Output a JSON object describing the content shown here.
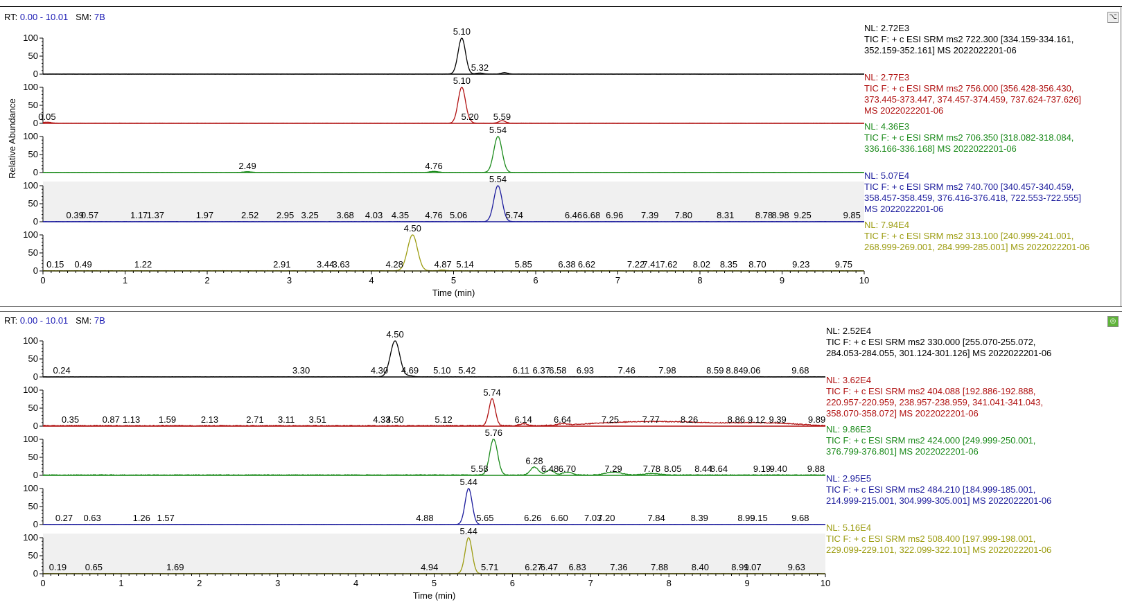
{
  "panels": [
    {
      "rt_label": "RT:",
      "rt_range": "0.00 - 10.01",
      "sm_label": "SM:",
      "sm_value": "7B",
      "ylabel": "Relative Abundance",
      "xlabel": "Time (min)"
    },
    {
      "rt_label": "RT:",
      "rt_range": "0.00 - 10.01",
      "sm_label": "SM:",
      "sm_value": "7B",
      "ylabel": "",
      "xlabel": "Time (min)"
    }
  ],
  "chart_data": [
    {
      "type": "line",
      "xlabel": "Time (min)",
      "ylabel": "Relative Abundance",
      "xlim": [
        0,
        10
      ],
      "x_ticks": [
        0,
        1,
        2,
        3,
        4,
        5,
        6,
        7,
        8,
        9,
        10
      ],
      "ylim": [
        0,
        100
      ],
      "y_ticks": [
        0,
        50,
        100
      ],
      "traces": [
        {
          "color": "#000000",
          "nl": "NL: 2.72E3",
          "description": "TIC F: + c ESI SRM ms2 722.300 [334.159-334.161,\n352.159-352.161]  MS 2022022201-06",
          "shaded": false,
          "baseline_noise": 0.5,
          "peaks": [
            {
              "rt": 5.1,
              "height": 100,
              "width": 0.045
            },
            {
              "rt": 5.32,
              "height": 3,
              "width": 0.04
            },
            {
              "rt": 5.62,
              "height": 4,
              "width": 0.04
            }
          ],
          "labels": [
            {
              "rt": 5.1,
              "text": "5.10"
            },
            {
              "rt": 5.32,
              "text": "5.32"
            }
          ]
        },
        {
          "color": "#b01010",
          "nl": "NL: 2.77E3",
          "description": "TIC F: + c ESI SRM ms2 756.000 [356.428-356.430,\n373.445-373.447, 374.457-374.459, 737.624-737.626]\nMS 2022022201-06",
          "shaded": false,
          "baseline_noise": 0.8,
          "peaks": [
            {
              "rt": 0.05,
              "height": 3,
              "width": 0.05
            },
            {
              "rt": 5.1,
              "height": 100,
              "width": 0.045
            },
            {
              "rt": 5.2,
              "height": 3,
              "width": 0.03
            },
            {
              "rt": 5.59,
              "height": 7,
              "width": 0.04
            }
          ],
          "labels": [
            {
              "rt": 0.05,
              "text": "0.05"
            },
            {
              "rt": 5.1,
              "text": "5.10"
            },
            {
              "rt": 5.2,
              "text": "5.20"
            },
            {
              "rt": 5.59,
              "text": "5.59"
            }
          ]
        },
        {
          "color": "#1a8a1a",
          "nl": "NL: 4.36E3",
          "description": "TIC F: + c ESI SRM ms2 706.350 [318.082-318.084,\n336.166-336.168]  MS 2022022201-06",
          "shaded": false,
          "baseline_noise": 0.6,
          "peaks": [
            {
              "rt": 2.49,
              "height": 2,
              "width": 0.05
            },
            {
              "rt": 4.76,
              "height": 3,
              "width": 0.05
            },
            {
              "rt": 5.54,
              "height": 100,
              "width": 0.05
            }
          ],
          "labels": [
            {
              "rt": 2.49,
              "text": "2.49"
            },
            {
              "rt": 4.76,
              "text": "4.76"
            },
            {
              "rt": 5.54,
              "text": "5.54"
            }
          ]
        },
        {
          "color": "#1a1a9c",
          "nl": "NL: 5.07E4",
          "description": "TIC F: + c ESI SRM ms2 740.700 [340.457-340.459,\n358.457-358.459, 376.416-376.418, 722.553-722.555]\nMS 2022022201-06",
          "shaded": true,
          "baseline_noise": 0.6,
          "peaks": [
            {
              "rt": 5.54,
              "height": 100,
              "width": 0.05
            }
          ],
          "labels": [
            {
              "rt": 0.39,
              "text": "0.39"
            },
            {
              "rt": 0.57,
              "text": "0.57"
            },
            {
              "rt": 1.17,
              "text": "1.17"
            },
            {
              "rt": 1.37,
              "text": "1.37"
            },
            {
              "rt": 1.97,
              "text": "1.97"
            },
            {
              "rt": 2.52,
              "text": "2.52"
            },
            {
              "rt": 2.95,
              "text": "2.95"
            },
            {
              "rt": 3.25,
              "text": "3.25"
            },
            {
              "rt": 3.68,
              "text": "3.68"
            },
            {
              "rt": 4.03,
              "text": "4.03"
            },
            {
              "rt": 4.35,
              "text": "4.35"
            },
            {
              "rt": 4.76,
              "text": "4.76"
            },
            {
              "rt": 5.06,
              "text": "5.06"
            },
            {
              "rt": 5.54,
              "text": "5.54"
            },
            {
              "rt": 5.74,
              "text": "5.74"
            },
            {
              "rt": 6.46,
              "text": "6.46"
            },
            {
              "rt": 6.68,
              "text": "6.68"
            },
            {
              "rt": 6.96,
              "text": "6.96"
            },
            {
              "rt": 7.39,
              "text": "7.39"
            },
            {
              "rt": 7.8,
              "text": "7.80"
            },
            {
              "rt": 8.31,
              "text": "8.31"
            },
            {
              "rt": 8.78,
              "text": "8.78"
            },
            {
              "rt": 8.98,
              "text": "8.98"
            },
            {
              "rt": 9.25,
              "text": "9.25"
            },
            {
              "rt": 9.85,
              "text": "9.85"
            }
          ]
        },
        {
          "color": "#9c9c10",
          "nl": "NL: 7.94E4",
          "description": "TIC F: + c ESI SRM ms2 313.100 [240.999-241.001,\n268.999-269.001, 284.999-285.001]  MS 2022022201-06",
          "shaded": false,
          "baseline_noise": 0.8,
          "peaks": [
            {
              "rt": 4.5,
              "height": 100,
              "width": 0.06
            },
            {
              "rt": 4.87,
              "height": 2,
              "width": 0.04
            }
          ],
          "labels": [
            {
              "rt": 0.15,
              "text": "0.15"
            },
            {
              "rt": 0.49,
              "text": "0.49"
            },
            {
              "rt": 1.22,
              "text": "1.22"
            },
            {
              "rt": 2.91,
              "text": "2.91"
            },
            {
              "rt": 3.44,
              "text": "3.44"
            },
            {
              "rt": 3.63,
              "text": "3.63"
            },
            {
              "rt": 4.28,
              "text": "4.28"
            },
            {
              "rt": 4.5,
              "text": "4.50"
            },
            {
              "rt": 4.87,
              "text": "4.87"
            },
            {
              "rt": 5.14,
              "text": "5.14"
            },
            {
              "rt": 5.85,
              "text": "5.85"
            },
            {
              "rt": 6.38,
              "text": "6.38"
            },
            {
              "rt": 6.62,
              "text": "6.62"
            },
            {
              "rt": 7.22,
              "text": "7.22"
            },
            {
              "rt": 7.41,
              "text": "7.41"
            },
            {
              "rt": 7.62,
              "text": "7.62"
            },
            {
              "rt": 8.02,
              "text": "8.02"
            },
            {
              "rt": 8.35,
              "text": "8.35"
            },
            {
              "rt": 8.7,
              "text": "8.70"
            },
            {
              "rt": 9.23,
              "text": "9.23"
            },
            {
              "rt": 9.75,
              "text": "9.75"
            }
          ]
        }
      ]
    },
    {
      "type": "line",
      "xlabel": "Time (min)",
      "ylabel": "",
      "xlim": [
        0,
        10
      ],
      "x_ticks": [
        0,
        1,
        2,
        3,
        4,
        5,
        6,
        7,
        8,
        9,
        10
      ],
      "ylim": [
        0,
        100
      ],
      "y_ticks": [
        0,
        50,
        100
      ],
      "traces": [
        {
          "color": "#000000",
          "nl": "NL: 2.52E4",
          "description": "TIC F: + c ESI SRM ms2 330.000 [255.070-255.072,\n284.053-284.055, 301.124-301.126]  MS 2022022201-06",
          "shaded": false,
          "baseline_noise": 0.6,
          "peaks": [
            {
              "rt": 4.5,
              "height": 100,
              "width": 0.06
            },
            {
              "rt": 4.69,
              "height": 3,
              "width": 0.04
            }
          ],
          "labels": [
            {
              "rt": 0.24,
              "text": "0.24"
            },
            {
              "rt": 3.3,
              "text": "3.30"
            },
            {
              "rt": 4.3,
              "text": "4.30"
            },
            {
              "rt": 4.5,
              "text": "4.50"
            },
            {
              "rt": 4.69,
              "text": "4.69"
            },
            {
              "rt": 5.1,
              "text": "5.10"
            },
            {
              "rt": 5.42,
              "text": "5.42"
            },
            {
              "rt": 6.11,
              "text": "6.11"
            },
            {
              "rt": 6.37,
              "text": "6.37"
            },
            {
              "rt": 6.58,
              "text": "6.58"
            },
            {
              "rt": 6.93,
              "text": "6.93"
            },
            {
              "rt": 7.46,
              "text": "7.46"
            },
            {
              "rt": 7.98,
              "text": "7.98"
            },
            {
              "rt": 8.59,
              "text": "8.59"
            },
            {
              "rt": 8.84,
              "text": "8.84"
            },
            {
              "rt": 9.06,
              "text": "9.06"
            },
            {
              "rt": 9.68,
              "text": "9.68"
            }
          ]
        },
        {
          "color": "#b01010",
          "nl": "NL: 3.62E4",
          "description": "TIC F: + c ESI SRM ms2 404.088 [192.886-192.888,\n220.957-220.959, 238.957-238.959, 341.041-341.043,\n358.070-358.072]  MS 2022022201-06",
          "shaded": false,
          "baseline_noise": 2.5,
          "peaks": [
            {
              "rt": 5.74,
              "height": 75,
              "width": 0.04
            },
            {
              "rt": 6.14,
              "height": 5,
              "width": 0.05
            },
            {
              "rt": 6.64,
              "height": 4,
              "width": 0.05
            },
            {
              "rt": 7.25,
              "height": 7,
              "width": 0.4
            },
            {
              "rt": 7.77,
              "height": 7,
              "width": 0.3
            },
            {
              "rt": 8.26,
              "height": 7,
              "width": 0.3
            },
            {
              "rt": 8.86,
              "height": 6,
              "width": 0.3
            },
            {
              "rt": 9.39,
              "height": 6,
              "width": 0.3
            }
          ],
          "labels": [
            {
              "rt": 0.35,
              "text": "0.35"
            },
            {
              "rt": 0.87,
              "text": "0.87"
            },
            {
              "rt": 1.13,
              "text": "1.13"
            },
            {
              "rt": 1.59,
              "text": "1.59"
            },
            {
              "rt": 2.13,
              "text": "2.13"
            },
            {
              "rt": 2.71,
              "text": "2.71"
            },
            {
              "rt": 3.11,
              "text": "3.11"
            },
            {
              "rt": 3.51,
              "text": "3.51"
            },
            {
              "rt": 4.33,
              "text": "4.33"
            },
            {
              "rt": 4.5,
              "text": "4.50"
            },
            {
              "rt": 5.12,
              "text": "5.12"
            },
            {
              "rt": 5.74,
              "text": "5.74"
            },
            {
              "rt": 6.14,
              "text": "6.14"
            },
            {
              "rt": 6.64,
              "text": "6.64"
            },
            {
              "rt": 7.25,
              "text": "7.25"
            },
            {
              "rt": 7.77,
              "text": "7.77"
            },
            {
              "rt": 8.26,
              "text": "8.26"
            },
            {
              "rt": 8.86,
              "text": "8.86"
            },
            {
              "rt": 9.12,
              "text": "9.12"
            },
            {
              "rt": 9.39,
              "text": "9.39"
            },
            {
              "rt": 9.89,
              "text": "9.89"
            }
          ]
        },
        {
          "color": "#1a8a1a",
          "nl": "NL: 9.86E3",
          "description": "TIC F: + c ESI SRM ms2 424.000 [249.999-250.001,\n376.799-376.801]  MS 2022022201-06",
          "shaded": false,
          "baseline_noise": 2.0,
          "peaks": [
            {
              "rt": 5.76,
              "height": 100,
              "width": 0.05
            },
            {
              "rt": 6.28,
              "height": 22,
              "width": 0.05
            },
            {
              "rt": 6.48,
              "height": 14,
              "width": 0.05
            },
            {
              "rt": 6.7,
              "height": 8,
              "width": 0.06
            },
            {
              "rt": 7.29,
              "height": 8,
              "width": 0.1
            },
            {
              "rt": 7.78,
              "height": 4,
              "width": 0.1
            }
          ],
          "labels": [
            {
              "rt": 5.58,
              "text": "5.58"
            },
            {
              "rt": 5.76,
              "text": "5.76"
            },
            {
              "rt": 6.28,
              "text": "6.28"
            },
            {
              "rt": 6.48,
              "text": "6.48"
            },
            {
              "rt": 6.7,
              "text": "6.70"
            },
            {
              "rt": 7.29,
              "text": "7.29"
            },
            {
              "rt": 7.78,
              "text": "7.78"
            },
            {
              "rt": 8.05,
              "text": "8.05"
            },
            {
              "rt": 8.44,
              "text": "8.44"
            },
            {
              "rt": 8.64,
              "text": "8.64"
            },
            {
              "rt": 9.19,
              "text": "9.19"
            },
            {
              "rt": 9.4,
              "text": "9.40"
            },
            {
              "rt": 9.88,
              "text": "9.88"
            }
          ]
        },
        {
          "color": "#1a1a9c",
          "nl": "NL: 2.95E5",
          "description": "TIC F: + c ESI SRM ms2 484.210 [184.999-185.001,\n214.999-215.001, 304.999-305.001]  MS 2022022201-06",
          "shaded": false,
          "baseline_noise": 0.4,
          "peaks": [
            {
              "rt": 5.44,
              "height": 100,
              "width": 0.045
            }
          ],
          "labels": [
            {
              "rt": 0.27,
              "text": "0.27"
            },
            {
              "rt": 0.63,
              "text": "0.63"
            },
            {
              "rt": 1.26,
              "text": "1.26"
            },
            {
              "rt": 1.57,
              "text": "1.57"
            },
            {
              "rt": 4.88,
              "text": "4.88"
            },
            {
              "rt": 5.44,
              "text": "5.44"
            },
            {
              "rt": 5.65,
              "text": "5.65"
            },
            {
              "rt": 6.26,
              "text": "6.26"
            },
            {
              "rt": 6.6,
              "text": "6.60"
            },
            {
              "rt": 7.03,
              "text": "7.03"
            },
            {
              "rt": 7.2,
              "text": "7.20"
            },
            {
              "rt": 7.84,
              "text": "7.84"
            },
            {
              "rt": 8.39,
              "text": "8.39"
            },
            {
              "rt": 8.99,
              "text": "8.99"
            },
            {
              "rt": 9.15,
              "text": "9.15"
            },
            {
              "rt": 9.68,
              "text": "9.68"
            }
          ]
        },
        {
          "color": "#9c9c10",
          "nl": "NL: 5.16E4",
          "description": "TIC F: + c ESI SRM ms2 508.400 [197.999-198.001,\n229.099-229.101, 322.099-322.101]  MS 2022022201-06",
          "shaded": true,
          "baseline_noise": 0.5,
          "peaks": [
            {
              "rt": 5.44,
              "height": 100,
              "width": 0.045
            }
          ],
          "labels": [
            {
              "rt": 0.19,
              "text": "0.19"
            },
            {
              "rt": 0.65,
              "text": "0.65"
            },
            {
              "rt": 1.69,
              "text": "1.69"
            },
            {
              "rt": 4.94,
              "text": "4.94"
            },
            {
              "rt": 5.44,
              "text": "5.44"
            },
            {
              "rt": 5.71,
              "text": "5.71"
            },
            {
              "rt": 6.27,
              "text": "6.27"
            },
            {
              "rt": 6.47,
              "text": "6.47"
            },
            {
              "rt": 6.83,
              "text": "6.83"
            },
            {
              "rt": 7.36,
              "text": "7.36"
            },
            {
              "rt": 7.88,
              "text": "7.88"
            },
            {
              "rt": 8.4,
              "text": "8.40"
            },
            {
              "rt": 8.91,
              "text": "8.91"
            },
            {
              "rt": 9.07,
              "text": "9.07"
            },
            {
              "rt": 9.63,
              "text": "9.63"
            }
          ]
        }
      ]
    }
  ]
}
